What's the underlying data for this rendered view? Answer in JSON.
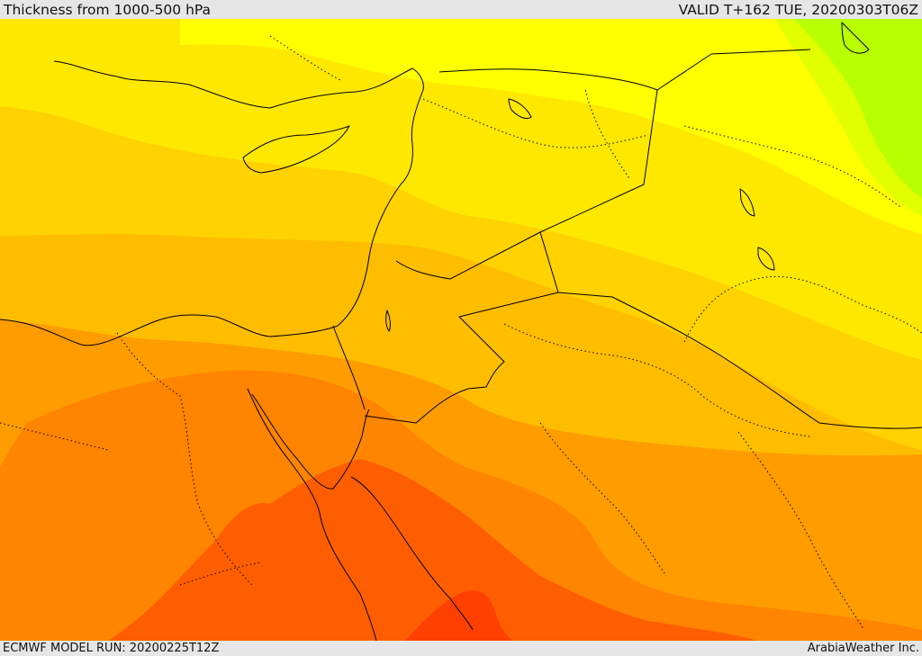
{
  "header": {
    "title": "Thickness from 1000-500 hPa",
    "valid": "VALID T+162 TUE, 20200303T06Z"
  },
  "footer": {
    "model_run": "ECMWF MODEL RUN: 20200225T12Z",
    "credit": "ArabiaWeather Inc."
  },
  "palette": {
    "lime": "#b8ff00",
    "yellow_green": "#e2ff00",
    "yellow": "#ffff00",
    "yellow_deep": "#ffe800",
    "gold": "#ffd200",
    "amber": "#ffbd00",
    "orange_light": "#ff9c00",
    "orange": "#ff8400",
    "orange_red": "#ff5e00",
    "red_orange": "#ff4000",
    "boundary_line": "#000000"
  }
}
